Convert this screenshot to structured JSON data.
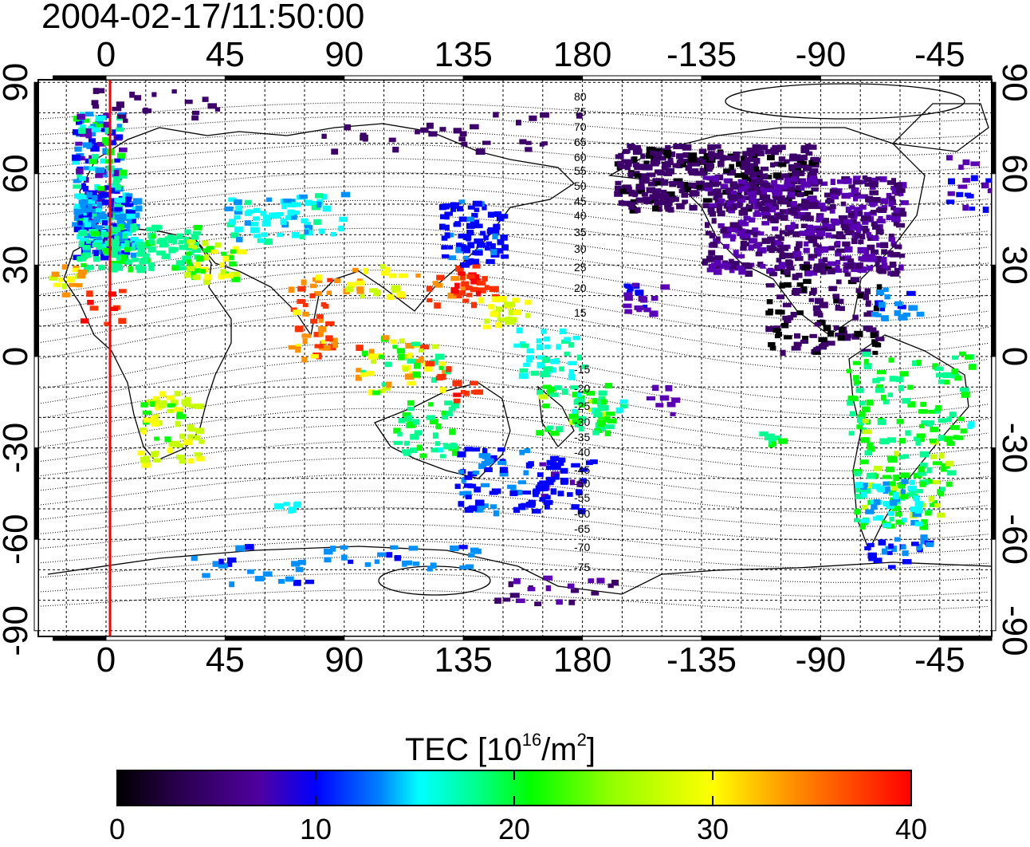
{
  "title": "2004-02-17/11:50:00",
  "map": {
    "top_lon_ticks": [
      "0",
      "45",
      "90",
      "135",
      "180",
      "-135",
      "-90",
      "-45"
    ],
    "bottom_lon_ticks": [
      "0",
      "45",
      "90",
      "135",
      "180",
      "-135",
      "-90",
      "-45"
    ],
    "lat_ticks": [
      "90",
      "60",
      "30",
      "0",
      "-30",
      "-60",
      "-90"
    ],
    "contour_labels_north": [
      "80",
      "75",
      "70",
      "65",
      "60",
      "55",
      "50",
      "45",
      "40",
      "35",
      "30",
      "25",
      "20",
      "15"
    ],
    "contour_labels_south": [
      "-15",
      "-20",
      "-25",
      "-30",
      "-35",
      "-40",
      "-45",
      "-50",
      "-55",
      "-60",
      "-65",
      "-70",
      "-75"
    ],
    "terminator_color": "#ff0000",
    "land_color": "#000000"
  },
  "colorbar": {
    "title_prefix": "TEC  [10",
    "title_exp1": "16",
    "title_mid": "/m",
    "title_exp2": "2",
    "title_suffix": "]",
    "ticks": [
      "0",
      "10",
      "20",
      "30",
      "40"
    ],
    "min": 0,
    "max": 40,
    "colors": [
      "#000000",
      "#3d006b",
      "#5a00b4",
      "#0000ff",
      "#0090ff",
      "#00ffff",
      "#00ff90",
      "#00ff00",
      "#c8ff00",
      "#ffff00",
      "#ff9000",
      "#ff3000",
      "#ff0000"
    ]
  }
}
